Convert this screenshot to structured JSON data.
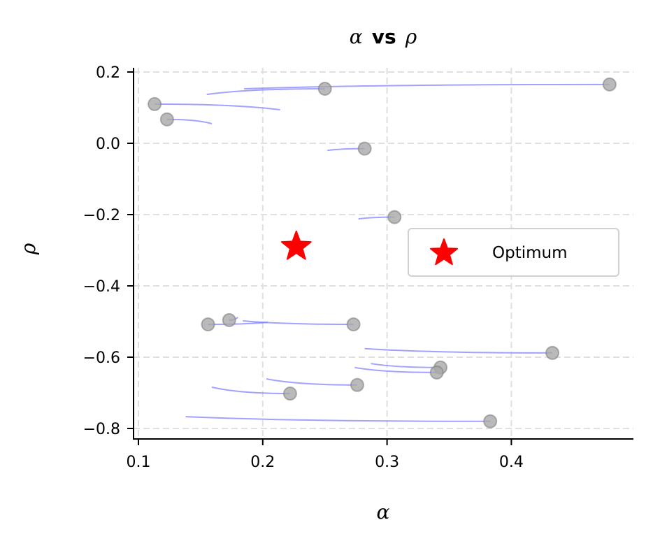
{
  "chart_data": {
    "type": "scatter",
    "title": "α vs ρ",
    "title_parts": {
      "left": "α",
      "middle": "vs",
      "right": "ρ"
    },
    "xlabel": "α",
    "ylabel": "ρ",
    "xlim": [
      0.095,
      0.495
    ],
    "ylim": [
      -0.83,
      0.215
    ],
    "xticks": [
      0.1,
      0.2,
      0.3,
      0.4
    ],
    "xtick_labels": [
      "0.1",
      "0.2",
      "0.3",
      "0.4"
    ],
    "yticks": [
      0.2,
      0.0,
      -0.2,
      -0.4,
      -0.6,
      -0.8
    ],
    "ytick_labels": [
      "0.2",
      "0.0",
      "−0.2",
      "−0.4",
      "−0.6",
      "−0.8"
    ],
    "grid": true,
    "legend": {
      "position": "center right",
      "entries": [
        "Optimum"
      ]
    },
    "optimum": {
      "alpha": 0.227,
      "rho": -0.29,
      "marker": "star",
      "color": "#ff0000"
    },
    "points": [
      {
        "alpha": 0.479,
        "rho": 0.165,
        "trail_start": {
          "alpha": 0.185,
          "rho": 0.153
        }
      },
      {
        "alpha": 0.25,
        "rho": 0.153,
        "trail_start": {
          "alpha": 0.155,
          "rho": 0.137
        }
      },
      {
        "alpha": 0.113,
        "rho": 0.11,
        "trail_start": {
          "alpha": 0.214,
          "rho": 0.094
        }
      },
      {
        "alpha": 0.123,
        "rho": 0.067,
        "trail_start": {
          "alpha": 0.159,
          "rho": 0.055
        }
      },
      {
        "alpha": 0.282,
        "rho": -0.015,
        "trail_start": {
          "alpha": 0.252,
          "rho": -0.02
        }
      },
      {
        "alpha": 0.306,
        "rho": -0.207,
        "trail_start": {
          "alpha": 0.277,
          "rho": -0.212
        }
      },
      {
        "alpha": 0.156,
        "rho": -0.508,
        "trail_start": {
          "alpha": 0.204,
          "rho": -0.502
        }
      },
      {
        "alpha": 0.173,
        "rho": -0.496,
        "trail_start": {
          "alpha": 0.18,
          "rho": -0.488
        }
      },
      {
        "alpha": 0.273,
        "rho": -0.508,
        "trail_start": {
          "alpha": 0.184,
          "rho": -0.498
        }
      },
      {
        "alpha": 0.433,
        "rho": -0.588,
        "trail_start": {
          "alpha": 0.282,
          "rho": -0.576
        }
      },
      {
        "alpha": 0.343,
        "rho": -0.629,
        "trail_start": {
          "alpha": 0.287,
          "rho": -0.618
        }
      },
      {
        "alpha": 0.34,
        "rho": -0.643,
        "trail_start": {
          "alpha": 0.274,
          "rho": -0.629
        }
      },
      {
        "alpha": 0.276,
        "rho": -0.678,
        "trail_start": {
          "alpha": 0.203,
          "rho": -0.661
        }
      },
      {
        "alpha": 0.222,
        "rho": -0.702,
        "trail_start": {
          "alpha": 0.159,
          "rho": -0.684
        }
      },
      {
        "alpha": 0.383,
        "rho": -0.78,
        "trail_start": {
          "alpha": 0.138,
          "rho": -0.767
        }
      }
    ],
    "colors": {
      "point_fill": "#a9a9a9",
      "point_edge": "#808080",
      "trail": "#7b7bff",
      "star": "#ff0000",
      "grid": "#e0e0e0"
    }
  }
}
